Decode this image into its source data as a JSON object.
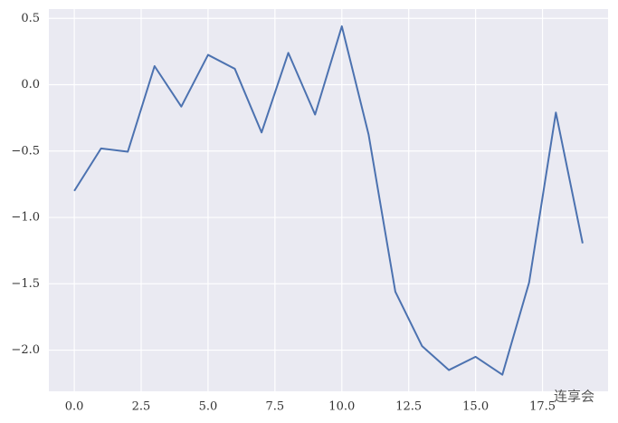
{
  "chart_data": {
    "type": "line",
    "x": [
      0,
      1,
      2,
      3,
      4,
      5,
      6,
      7,
      8,
      9,
      10,
      11,
      12,
      13,
      14,
      15,
      16,
      17,
      18,
      19
    ],
    "series": [
      {
        "color": "#4c72b0",
        "values": [
          -0.8,
          -0.48,
          -0.505,
          0.14,
          -0.165,
          0.225,
          0.12,
          -0.36,
          0.24,
          -0.225,
          0.44,
          -0.375,
          -1.56,
          -1.97,
          -2.15,
          -2.05,
          -2.185,
          -1.49,
          -0.21,
          -1.195
        ]
      }
    ],
    "xlim": [
      -0.95,
      19.95
    ],
    "ylim": [
      -2.31,
      0.57
    ],
    "xticks": [
      {
        "value": 0,
        "label": "0.0"
      },
      {
        "value": 2.5,
        "label": "2.5"
      },
      {
        "value": 5,
        "label": "5.0"
      },
      {
        "value": 7.5,
        "label": "7.5"
      },
      {
        "value": 10,
        "label": "10.0"
      },
      {
        "value": 12.5,
        "label": "12.5"
      },
      {
        "value": 15,
        "label": "15.0"
      },
      {
        "value": 17.5,
        "label": "17.5"
      }
    ],
    "yticks": [
      {
        "value": -2,
        "label": "−2.0"
      },
      {
        "value": -1.5,
        "label": "−1.5"
      },
      {
        "value": -1,
        "label": "−1.0"
      },
      {
        "value": -0.5,
        "label": "−0.5"
      },
      {
        "value": 0,
        "label": "0.0"
      },
      {
        "value": 0.5,
        "label": "0.5"
      }
    ],
    "grid": true,
    "background": "#eaeaf2",
    "watermark": "连享会"
  }
}
